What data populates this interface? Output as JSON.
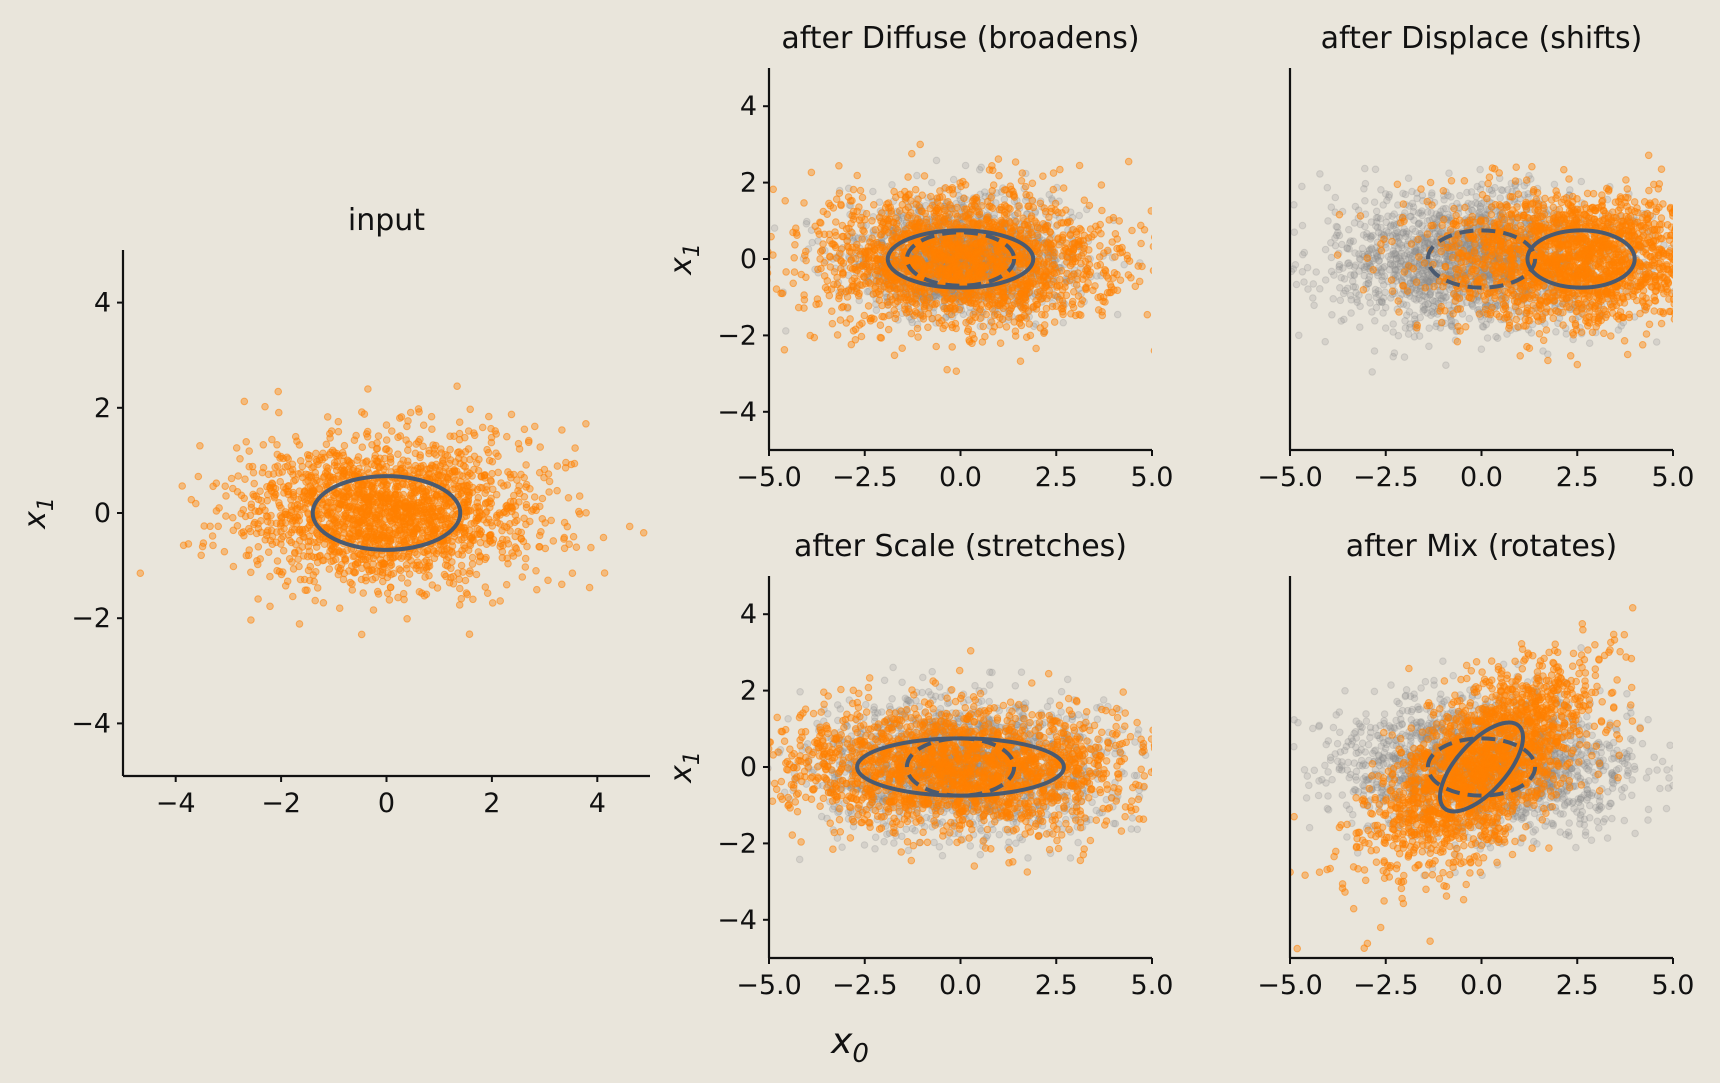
{
  "figure": {
    "background": "#e9e5db",
    "xlabel": "x",
    "xlabel_sub": "0"
  },
  "colors": {
    "transformed_points": "#ff8000",
    "original_points": "#8c8c8c",
    "ellipse": "#4a5a70"
  },
  "chart_data": [
    {
      "id": "input",
      "type": "scatter",
      "title": "input",
      "xlabel": "",
      "ylabel": "x",
      "ylabel_sub": "1",
      "xlim": [
        -5,
        5
      ],
      "ylim": [
        -5,
        5
      ],
      "xticks": [
        -4,
        -2,
        0,
        2,
        4
      ],
      "xtick_labels": [
        "−4",
        "−2",
        "0",
        "2",
        "4"
      ],
      "yticks": [
        -4,
        -2,
        0,
        2,
        4
      ],
      "ytick_labels": [
        "−4",
        "−2",
        "0",
        "2",
        "4"
      ],
      "grid": false,
      "series": [
        {
          "role": "transformed",
          "n_points": 2000,
          "mean": [
            0,
            0
          ],
          "cov": [
            [
              1.96,
              0
            ],
            [
              0,
              0.49
            ]
          ],
          "marker_color": "orange"
        }
      ],
      "ellipses": [
        {
          "center": [
            0,
            0
          ],
          "width": 2.8,
          "height": 1.4,
          "angle_deg": 0,
          "style": "solid"
        }
      ]
    },
    {
      "id": "diffuse",
      "type": "scatter",
      "title": "after Diffuse (broadens)",
      "xlabel": "",
      "ylabel": "x",
      "ylabel_sub": "1",
      "xlim": [
        -5,
        5
      ],
      "ylim": [
        -5,
        5
      ],
      "xticks": [
        -5,
        -2.5,
        0,
        2.5,
        5
      ],
      "xtick_labels": [
        "−5.0",
        "−2.5",
        "0.0",
        "2.5",
        "5.0"
      ],
      "yticks": [
        -4,
        -2,
        0,
        2,
        4
      ],
      "ytick_labels": [
        "−4",
        "−2",
        "0",
        "2",
        "4"
      ],
      "grid": false,
      "series": [
        {
          "role": "original",
          "n_points": 2000,
          "mean": [
            0,
            0
          ],
          "cov": [
            [
              1.96,
              0
            ],
            [
              0,
              0.49
            ]
          ],
          "marker_color": "gray"
        },
        {
          "role": "transformed",
          "n_points": 2000,
          "mean": [
            0,
            0
          ],
          "cov": [
            [
              3.6,
              0
            ],
            [
              0,
              0.72
            ]
          ],
          "marker_color": "orange"
        }
      ],
      "ellipses": [
        {
          "center": [
            0,
            0
          ],
          "width": 2.8,
          "height": 1.4,
          "angle_deg": 0,
          "style": "dashed"
        },
        {
          "center": [
            0,
            0
          ],
          "width": 3.8,
          "height": 1.5,
          "angle_deg": 0,
          "style": "solid"
        }
      ]
    },
    {
      "id": "displace",
      "type": "scatter",
      "title": "after Displace (shifts)",
      "xlabel": "",
      "ylabel": "",
      "xlim": [
        -5,
        5
      ],
      "ylim": [
        -5,
        5
      ],
      "xticks": [
        -5,
        -2.5,
        0,
        2.5,
        5
      ],
      "xtick_labels": [
        "−5.0",
        "−2.5",
        "0.0",
        "2.5",
        "5.0"
      ],
      "yticks": [],
      "ytick_labels": [],
      "grid": false,
      "series": [
        {
          "role": "original",
          "n_points": 2000,
          "mean": [
            0,
            0
          ],
          "cov": [
            [
              3.6,
              0
            ],
            [
              0,
              0.72
            ]
          ],
          "marker_color": "gray"
        },
        {
          "role": "transformed",
          "n_points": 2000,
          "mean": [
            2.6,
            0
          ],
          "cov": [
            [
              3.6,
              0
            ],
            [
              0,
              0.72
            ]
          ],
          "marker_color": "orange"
        }
      ],
      "ellipses": [
        {
          "center": [
            0,
            0
          ],
          "width": 2.8,
          "height": 1.5,
          "angle_deg": 0,
          "style": "dashed"
        },
        {
          "center": [
            2.6,
            0
          ],
          "width": 2.8,
          "height": 1.5,
          "angle_deg": 0,
          "style": "solid"
        }
      ]
    },
    {
      "id": "scale",
      "type": "scatter",
      "title": "after Scale (stretches)",
      "xlabel": "",
      "ylabel": "x",
      "ylabel_sub": "1",
      "xlim": [
        -5,
        5
      ],
      "ylim": [
        -5,
        5
      ],
      "xticks": [
        -5,
        -2.5,
        0,
        2.5,
        5
      ],
      "xtick_labels": [
        "−5.0",
        "−2.5",
        "0.0",
        "2.5",
        "5.0"
      ],
      "yticks": [
        -4,
        -2,
        0,
        2,
        4
      ],
      "ytick_labels": [
        "−4",
        "−2",
        "0",
        "2",
        "4"
      ],
      "grid": false,
      "series": [
        {
          "role": "original",
          "n_points": 2000,
          "mean": [
            0,
            0
          ],
          "cov": [
            [
              3.6,
              0
            ],
            [
              0,
              0.72
            ]
          ],
          "marker_color": "gray"
        },
        {
          "role": "transformed",
          "n_points": 2000,
          "mean": [
            0,
            0
          ],
          "cov": [
            [
              5.3,
              0
            ],
            [
              0,
              0.64
            ]
          ],
          "marker_color": "orange"
        }
      ],
      "ellipses": [
        {
          "center": [
            0,
            0
          ],
          "width": 2.8,
          "height": 1.5,
          "angle_deg": 0,
          "style": "dashed"
        },
        {
          "center": [
            0,
            0
          ],
          "width": 5.4,
          "height": 1.5,
          "angle_deg": 0,
          "style": "solid"
        }
      ]
    },
    {
      "id": "mix",
      "type": "scatter",
      "title": "after Mix (rotates)",
      "xlabel": "",
      "ylabel": "",
      "xlim": [
        -5,
        5
      ],
      "ylim": [
        -5,
        5
      ],
      "xticks": [
        -5,
        -2.5,
        0,
        2.5,
        5
      ],
      "xtick_labels": [
        "−5.0",
        "−2.5",
        "0.0",
        "2.5",
        "5.0"
      ],
      "yticks": [],
      "ytick_labels": [],
      "grid": false,
      "series": [
        {
          "role": "original",
          "n_points": 2000,
          "mean": [
            0,
            0
          ],
          "cov": [
            [
              3.2,
              0
            ],
            [
              0,
              0.8
            ]
          ],
          "marker_color": "gray"
        },
        {
          "role": "transformed",
          "n_points": 2000,
          "mean": [
            0,
            0
          ],
          "cov": [
            [
              1.9,
              1.1
            ],
            [
              1.1,
              1.6
            ]
          ],
          "marker_color": "orange"
        }
      ],
      "ellipses": [
        {
          "center": [
            0,
            0
          ],
          "width": 2.8,
          "height": 1.5,
          "angle_deg": 0,
          "style": "dashed"
        },
        {
          "center": [
            0,
            0
          ],
          "width": 2.9,
          "height": 1.3,
          "angle_deg": 48,
          "style": "solid"
        }
      ]
    }
  ]
}
